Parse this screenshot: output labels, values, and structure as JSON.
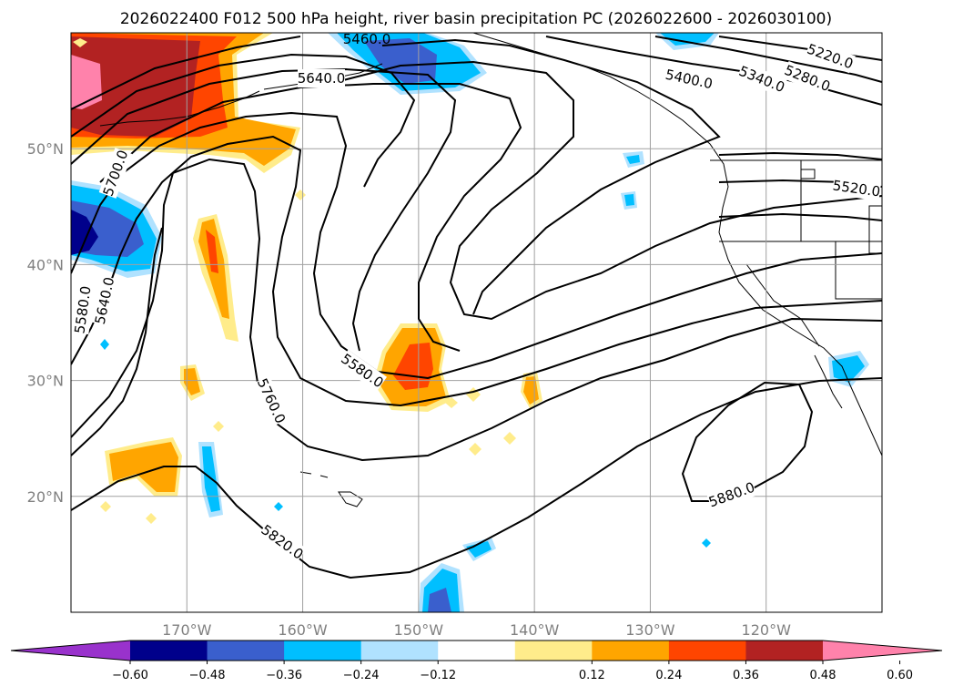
{
  "title": "2026022400 F012 500 hPa height, river basin precipitation PC (2026022600 - 2026030100)",
  "map": {
    "lon_range": [
      -180,
      -110
    ],
    "lat_range": [
      10,
      60
    ],
    "lon_ticks": [
      {
        "value": -170,
        "label": "170°W"
      },
      {
        "value": -160,
        "label": "160°W"
      },
      {
        "value": -150,
        "label": "150°W"
      },
      {
        "value": -140,
        "label": "140°W"
      },
      {
        "value": -130,
        "label": "130°W"
      },
      {
        "value": -120,
        "label": "120°W"
      }
    ],
    "lat_ticks": [
      {
        "value": 20,
        "label": "20°N"
      },
      {
        "value": 30,
        "label": "30°N"
      },
      {
        "value": 40,
        "label": "40°N"
      },
      {
        "value": 50,
        "label": "50°N"
      }
    ],
    "contour_labels": [
      "5220.0",
      "5280.0",
      "5340.0",
      "5400.0",
      "5460.0",
      "5520.0",
      "5580.0",
      "5580.0",
      "5640.0",
      "5640.0",
      "5700.0",
      "5760.0",
      "5820.0",
      "5880.0"
    ]
  },
  "colorbar": {
    "ticks": [
      "−0.60",
      "−0.48",
      "−0.36",
      "−0.24",
      "−0.12",
      "0.12",
      "0.24",
      "0.36",
      "0.48",
      "0.60"
    ],
    "colors": [
      "#9932cc",
      "#00008b",
      "#3a5fcd",
      "#00bfff",
      "#b0e2ff",
      "#ffffff",
      "#ffec8b",
      "#ffa500",
      "#ff4500",
      "#b22222",
      "#ff82ab"
    ]
  }
}
